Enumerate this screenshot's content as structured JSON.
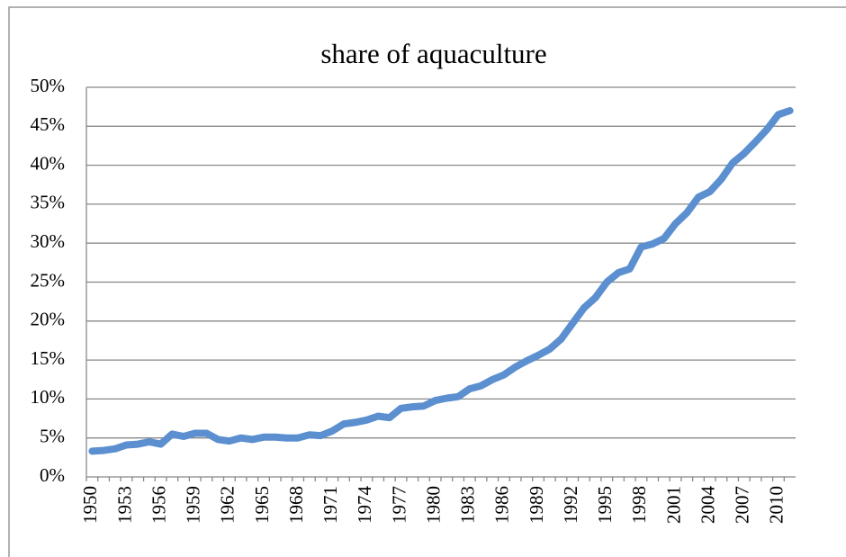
{
  "chart_data": {
    "type": "line",
    "title": "share of aquaculture",
    "categories": [
      "1950",
      null,
      null,
      "1953",
      null,
      null,
      "1956",
      null,
      null,
      "1959",
      null,
      null,
      "1962",
      null,
      null,
      "1965",
      null,
      null,
      "1968",
      null,
      null,
      "1971",
      null,
      null,
      "1974",
      null,
      null,
      "1977",
      null,
      null,
      "1980",
      null,
      null,
      "1983",
      null,
      null,
      "1986",
      null,
      null,
      "1989",
      null,
      null,
      "1992",
      null,
      null,
      "1995",
      null,
      null,
      "1998",
      null,
      null,
      "2001",
      null,
      null,
      "2004",
      null,
      null,
      "2007",
      null,
      null,
      "2010",
      null
    ],
    "values": [
      3.3,
      3.4,
      3.6,
      4.1,
      4.2,
      4.5,
      4.2,
      5.5,
      5.2,
      5.6,
      5.6,
      4.8,
      4.6,
      5.0,
      4.8,
      5.1,
      5.1,
      5.0,
      5.0,
      5.4,
      5.3,
      5.9,
      6.8,
      7.0,
      7.3,
      7.8,
      7.6,
      8.8,
      9.0,
      9.1,
      9.8,
      10.1,
      10.3,
      11.3,
      11.7,
      12.5,
      13.1,
      14.1,
      14.9,
      15.6,
      16.4,
      17.7,
      19.7,
      21.7,
      23.0,
      25.0,
      26.2,
      26.7,
      29.5,
      29.9,
      30.6,
      32.5,
      33.9,
      35.9,
      36.6,
      38.2,
      40.3,
      41.5,
      43.0,
      44.6,
      46.5,
      47.0
    ],
    "color": "#5b8fd0",
    "ylim": [
      0,
      50
    ],
    "yticks": [
      {
        "value": 0,
        "label": "0%"
      },
      {
        "value": 5,
        "label": "5%"
      },
      {
        "value": 10,
        "label": "10%"
      },
      {
        "value": 15,
        "label": "15%"
      },
      {
        "value": 20,
        "label": "20%"
      },
      {
        "value": 25,
        "label": "25%"
      },
      {
        "value": 30,
        "label": "30%"
      },
      {
        "value": 35,
        "label": "35%"
      },
      {
        "value": 40,
        "label": "40%"
      },
      {
        "value": 45,
        "label": "45%"
      },
      {
        "value": 50,
        "label": "50%"
      }
    ],
    "grid": true
  }
}
